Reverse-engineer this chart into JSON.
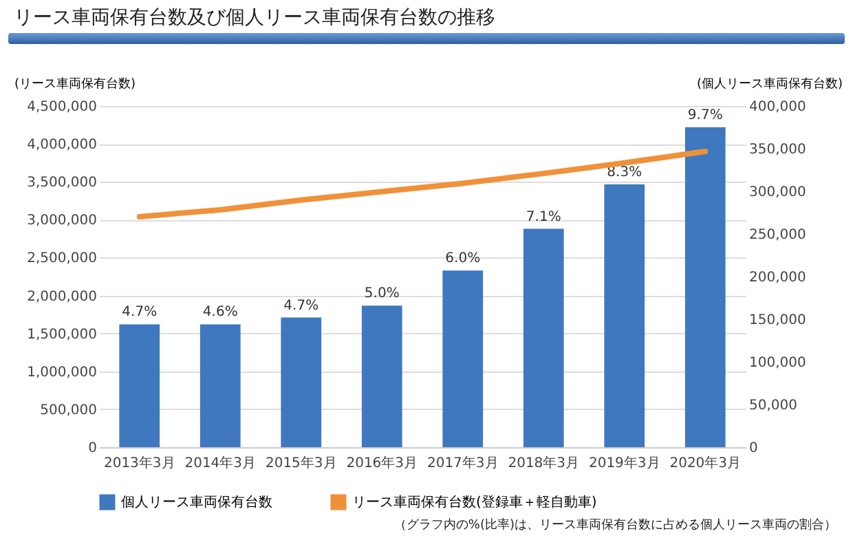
{
  "chart_data": {
    "type": "bar",
    "title": "リース車両保有台数及び個人リース車両保有台数の推移",
    "ylabel": "(リース車両保有台数)",
    "y2label": "(個人リース車両保有台数)",
    "categories": [
      "2013年3月",
      "2014年3月",
      "2015年3月",
      "2016年3月",
      "2017年3月",
      "2018年3月",
      "2019年3月",
      "2020年3月"
    ],
    "series": [
      {
        "name": "個人リース車両保有台数",
        "axis": "y2",
        "color": "#3f78bf",
        "values": [
          144000,
          144000,
          152000,
          166000,
          207000,
          256000,
          308000,
          375000
        ]
      },
      {
        "name": "リース車両保有台数(登録車＋軽自動車)",
        "type": "line",
        "color": "#f0913a",
        "values": [
          3040000,
          3130000,
          3260000,
          3370000,
          3480000,
          3610000,
          3750000,
          3900000
        ]
      }
    ],
    "ylim": [
      0,
      4500000
    ],
    "yticks": [
      0,
      {
        "value": 500000,
        "label": "500,000"
      },
      {
        "value": 1000000,
        "label": "1,000,000"
      },
      {
        "value": 1500000,
        "label": "1,500,000"
      },
      {
        "value": 2000000,
        "label": "2,000,000"
      },
      {
        "value": 2500000,
        "label": "2,500,000"
      },
      {
        "value": 3000000,
        "label": "3,000,000"
      },
      {
        "value": 3500000,
        "label": "3,500,000"
      },
      {
        "value": 4000000,
        "label": "4,000,000"
      },
      {
        "value": 4500000,
        "label": "4,500,000"
      }
    ],
    "y2lim": [
      0,
      400000
    ],
    "y2ticks": [
      0,
      {
        "value": 50000,
        "label": "50,000"
      },
      {
        "value": 100000,
        "label": "100,000"
      },
      {
        "value": 150000,
        "label": "150,000"
      },
      {
        "value": 200000,
        "label": "200,000"
      },
      {
        "value": 250000,
        "label": "250,000"
      },
      {
        "value": 300000,
        "label": "300,000"
      },
      {
        "value": 350000,
        "label": "350,000"
      },
      {
        "value": 400000,
        "label": "400,000"
      }
    ],
    "grid": "y",
    "legend": "bottom",
    "annotations": [
      "4.7%",
      "4.6%",
      "4.7%",
      "5.0%",
      "6.0%",
      "7.1%",
      "8.3%",
      "9.7%",
      "（グラフ内の%(比率)は、リース車両保有台数に占める個人リース車両の割合）"
    ]
  }
}
